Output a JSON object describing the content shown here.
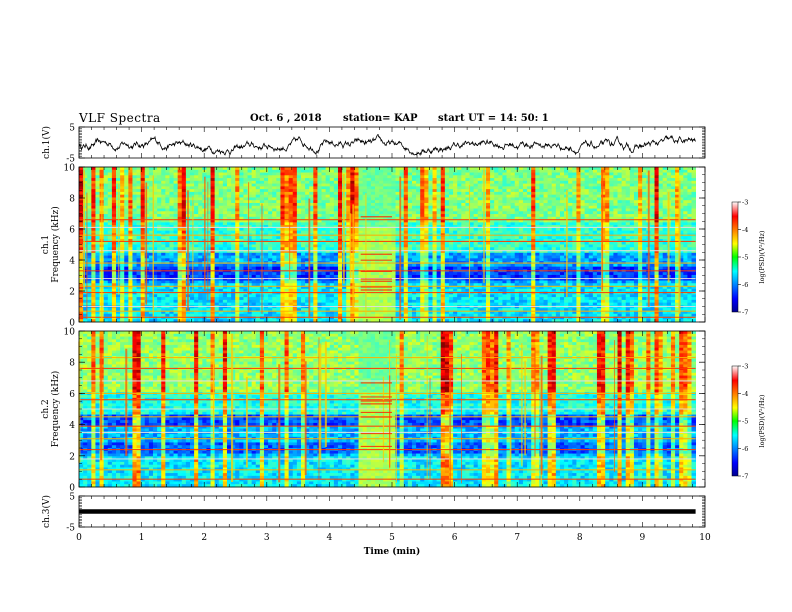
{
  "header": {
    "title": "VLF  Spectra",
    "date": "Oct. 6 , 2018",
    "station": "station= KAP",
    "start": "start  UT  =   14: 50: 1"
  },
  "chart_data": [
    {
      "type": "line",
      "name": "ch1-waveform",
      "ylabel": "ch.1(V)",
      "ylim": [
        -5,
        5
      ],
      "yticks": [
        "5",
        "-5"
      ],
      "xlim": [
        0,
        10
      ],
      "x_extent": [
        0,
        9.85
      ],
      "baseline": -1.0,
      "noise_amplitude": 2.2
    },
    {
      "type": "heatmap",
      "name": "ch1-spectrogram",
      "ylabel_channel": "ch.1",
      "ylabel": "Frequency  (kHz)",
      "ylim": [
        0,
        10
      ],
      "yticks": [
        "0",
        "2",
        "4",
        "6",
        "8",
        "10"
      ],
      "xlim": [
        0,
        10
      ],
      "x_extent": [
        0,
        9.85
      ],
      "colorbar": {
        "label": "log(PSD)(V²/Hz)",
        "range": [
          -7,
          -3
        ],
        "ticks": [
          "-3",
          "-4",
          "-5",
          "-6",
          "-7"
        ]
      },
      "burst_interval_min": [
        4.5,
        5.0
      ],
      "bands_khz": [
        0.3,
        0.7,
        1.0,
        1.9,
        2.3,
        2.8,
        3.3,
        3.8,
        4.6,
        5.2,
        5.6,
        6.1,
        6.6
      ]
    },
    {
      "type": "heatmap",
      "name": "ch2-spectrogram",
      "ylabel_channel": "ch.2",
      "ylabel": "Frequency  (kHz)",
      "ylim": [
        0,
        10
      ],
      "yticks": [
        "0",
        "2",
        "4",
        "6",
        "8",
        "10"
      ],
      "xlim": [
        0,
        10
      ],
      "x_extent": [
        0,
        9.85
      ],
      "colorbar": {
        "label": "log(PSD)(V²/Hz)",
        "range": [
          -7,
          -3
        ],
        "ticks": [
          "-3",
          "-4",
          "-5",
          "-6",
          "-7"
        ]
      },
      "burst_interval_min": [
        4.5,
        5.0
      ],
      "bands_khz": [
        0.5,
        1.1,
        1.8,
        2.4,
        3.1,
        3.5,
        3.9,
        4.5,
        5.0,
        5.6,
        6.0,
        6.8,
        7.6,
        8.3
      ]
    },
    {
      "type": "line",
      "name": "ch3-waveform",
      "ylabel": "ch.3(V)",
      "ylim": [
        -5,
        5
      ],
      "yticks": [
        "5",
        "-5"
      ],
      "xlim": [
        0,
        10
      ],
      "x_extent": [
        0,
        9.85
      ],
      "baseline": 0.0,
      "noise_amplitude": 0.25
    }
  ],
  "x_axis": {
    "label": "Time  (min)",
    "ticks": [
      "0",
      "1",
      "2",
      "3",
      "4",
      "5",
      "6",
      "7",
      "8",
      "9",
      "10"
    ]
  }
}
